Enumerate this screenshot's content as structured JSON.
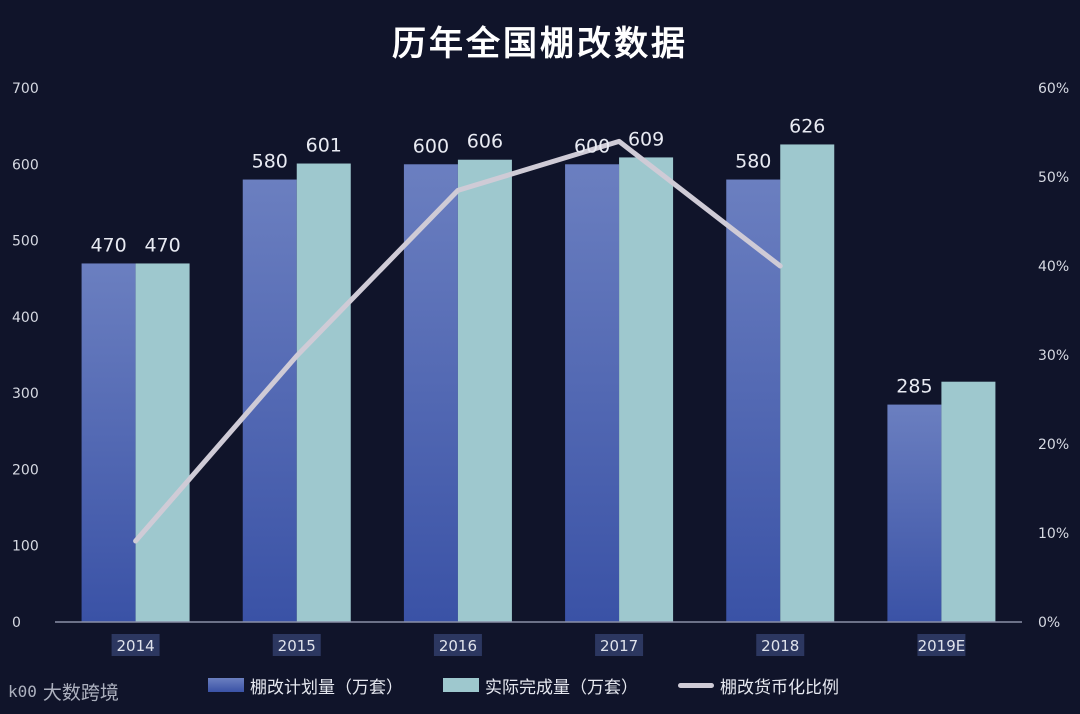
{
  "title": "历年全国棚改数据",
  "legend": {
    "plan": "棚改计划量（万套）",
    "actual": "实际完成量（万套）",
    "ratio": "棚改货币化比例"
  },
  "watermark": {
    "logo": "k00",
    "text": "大数跨境"
  },
  "colors": {
    "background": "#10142a",
    "plan_bar_top": "#6b7fc0",
    "plan_bar_bottom": "#3a52a6",
    "actual_bar": "#9ec8ce",
    "ratio_line": "#cfcbd6",
    "axis_text": "#d6d9e2"
  },
  "chart_data": {
    "type": "bar",
    "categories": [
      "2014",
      "2015",
      "2016",
      "2017",
      "2018",
      "2019E"
    ],
    "series": [
      {
        "name": "棚改计划量（万套）",
        "values": [
          470,
          580,
          600,
          600,
          580,
          285
        ],
        "labels": [
          "470",
          "580",
          "600",
          "600",
          "580",
          "285"
        ]
      },
      {
        "name": "实际完成量（万套）",
        "values": [
          470,
          601,
          606,
          609,
          626,
          315
        ],
        "labels": [
          "470",
          "601",
          "606",
          "609",
          "626",
          ""
        ]
      },
      {
        "name": "棚改货币化比例",
        "type": "line",
        "axis": "right",
        "values": [
          9.1,
          29.9,
          48.5,
          54.0,
          40.0,
          null
        ]
      }
    ],
    "ylim": [
      0,
      700
    ],
    "yticks": [
      "0",
      "100",
      "200",
      "300",
      "400",
      "500",
      "600",
      "700"
    ],
    "y2lim": [
      0,
      60
    ],
    "y2ticks": [
      "0%",
      "10%",
      "20%",
      "30%",
      "40%",
      "50%",
      "60%"
    ],
    "legend_position": "bottom",
    "grid": false
  }
}
